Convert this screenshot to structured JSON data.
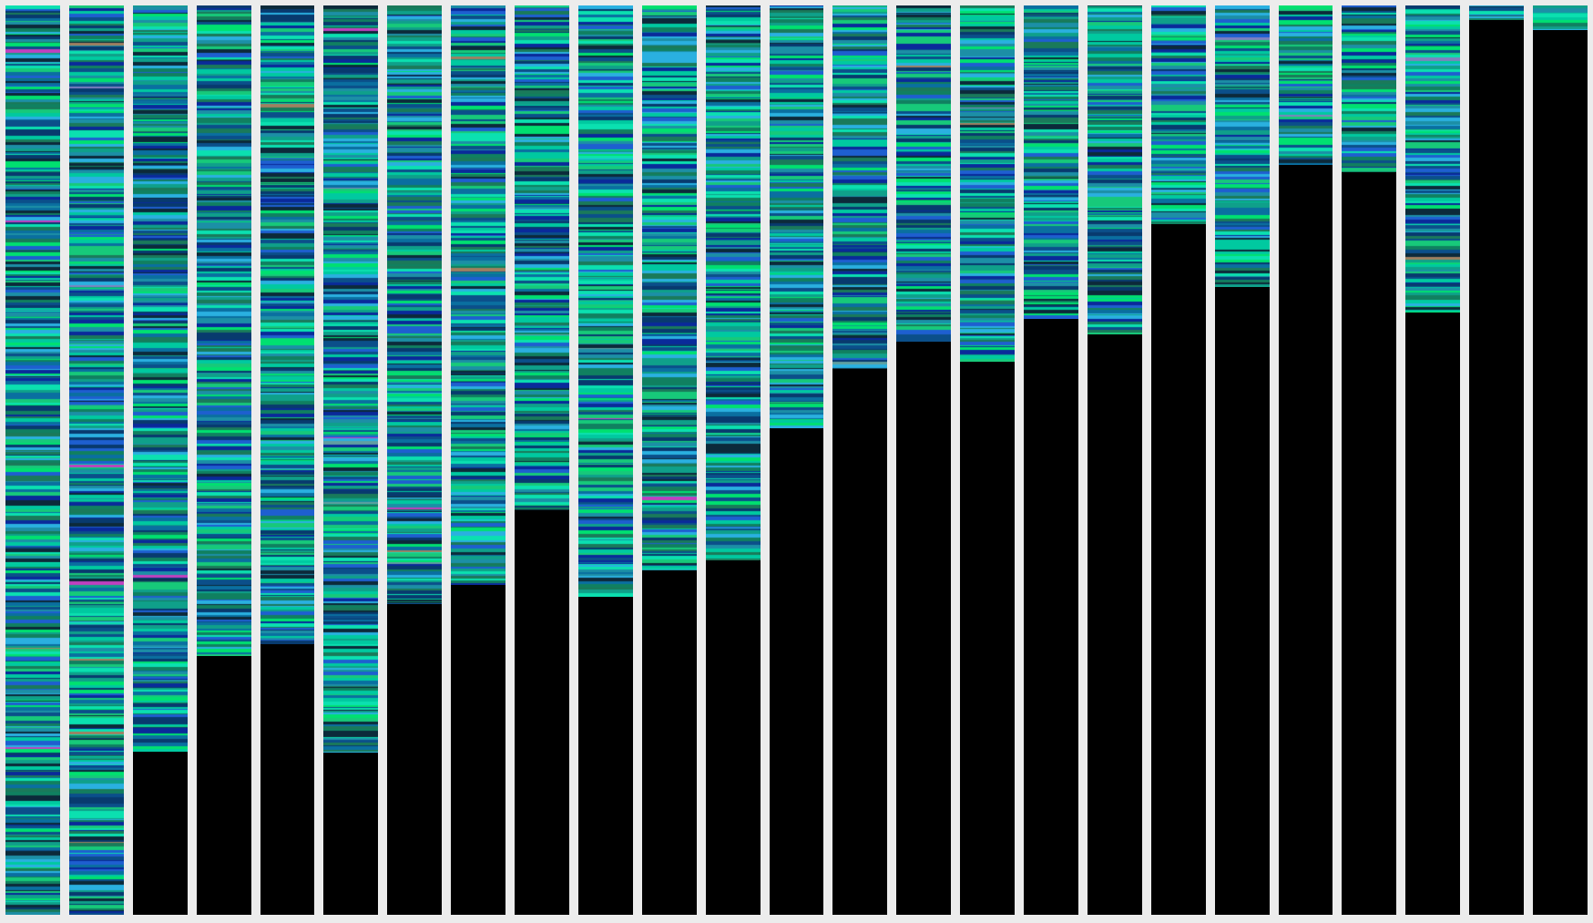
{
  "chart_data": {
    "type": "heatmap",
    "title": "",
    "xlabel": "",
    "ylabel": "",
    "n_columns": 25,
    "fill_fraction": [
      1.0,
      1.0,
      0.821,
      0.715,
      0.702,
      0.822,
      0.658,
      0.637,
      0.555,
      0.65,
      0.621,
      0.61,
      0.465,
      0.4,
      0.37,
      0.392,
      0.345,
      0.362,
      0.24,
      0.31,
      0.175,
      0.183,
      0.338,
      0.016,
      0.027
    ],
    "palette": [
      "#00c9a0",
      "#0fa08a",
      "#1c8fa6",
      "#0a6fa0",
      "#0b4f8a",
      "#083a6e",
      "#1a7a5a",
      "#17c97a",
      "#0be0b0",
      "#1e5fd0",
      "#0a2a9a",
      "#00e070",
      "#2ab0e0",
      "#0c2a3a",
      "#108060"
    ],
    "accent_palette": [
      "#c040c0",
      "#a08060",
      "#60a0a0",
      "#8080c0"
    ],
    "empty_color": "#000000",
    "background_color": "#ececec"
  }
}
